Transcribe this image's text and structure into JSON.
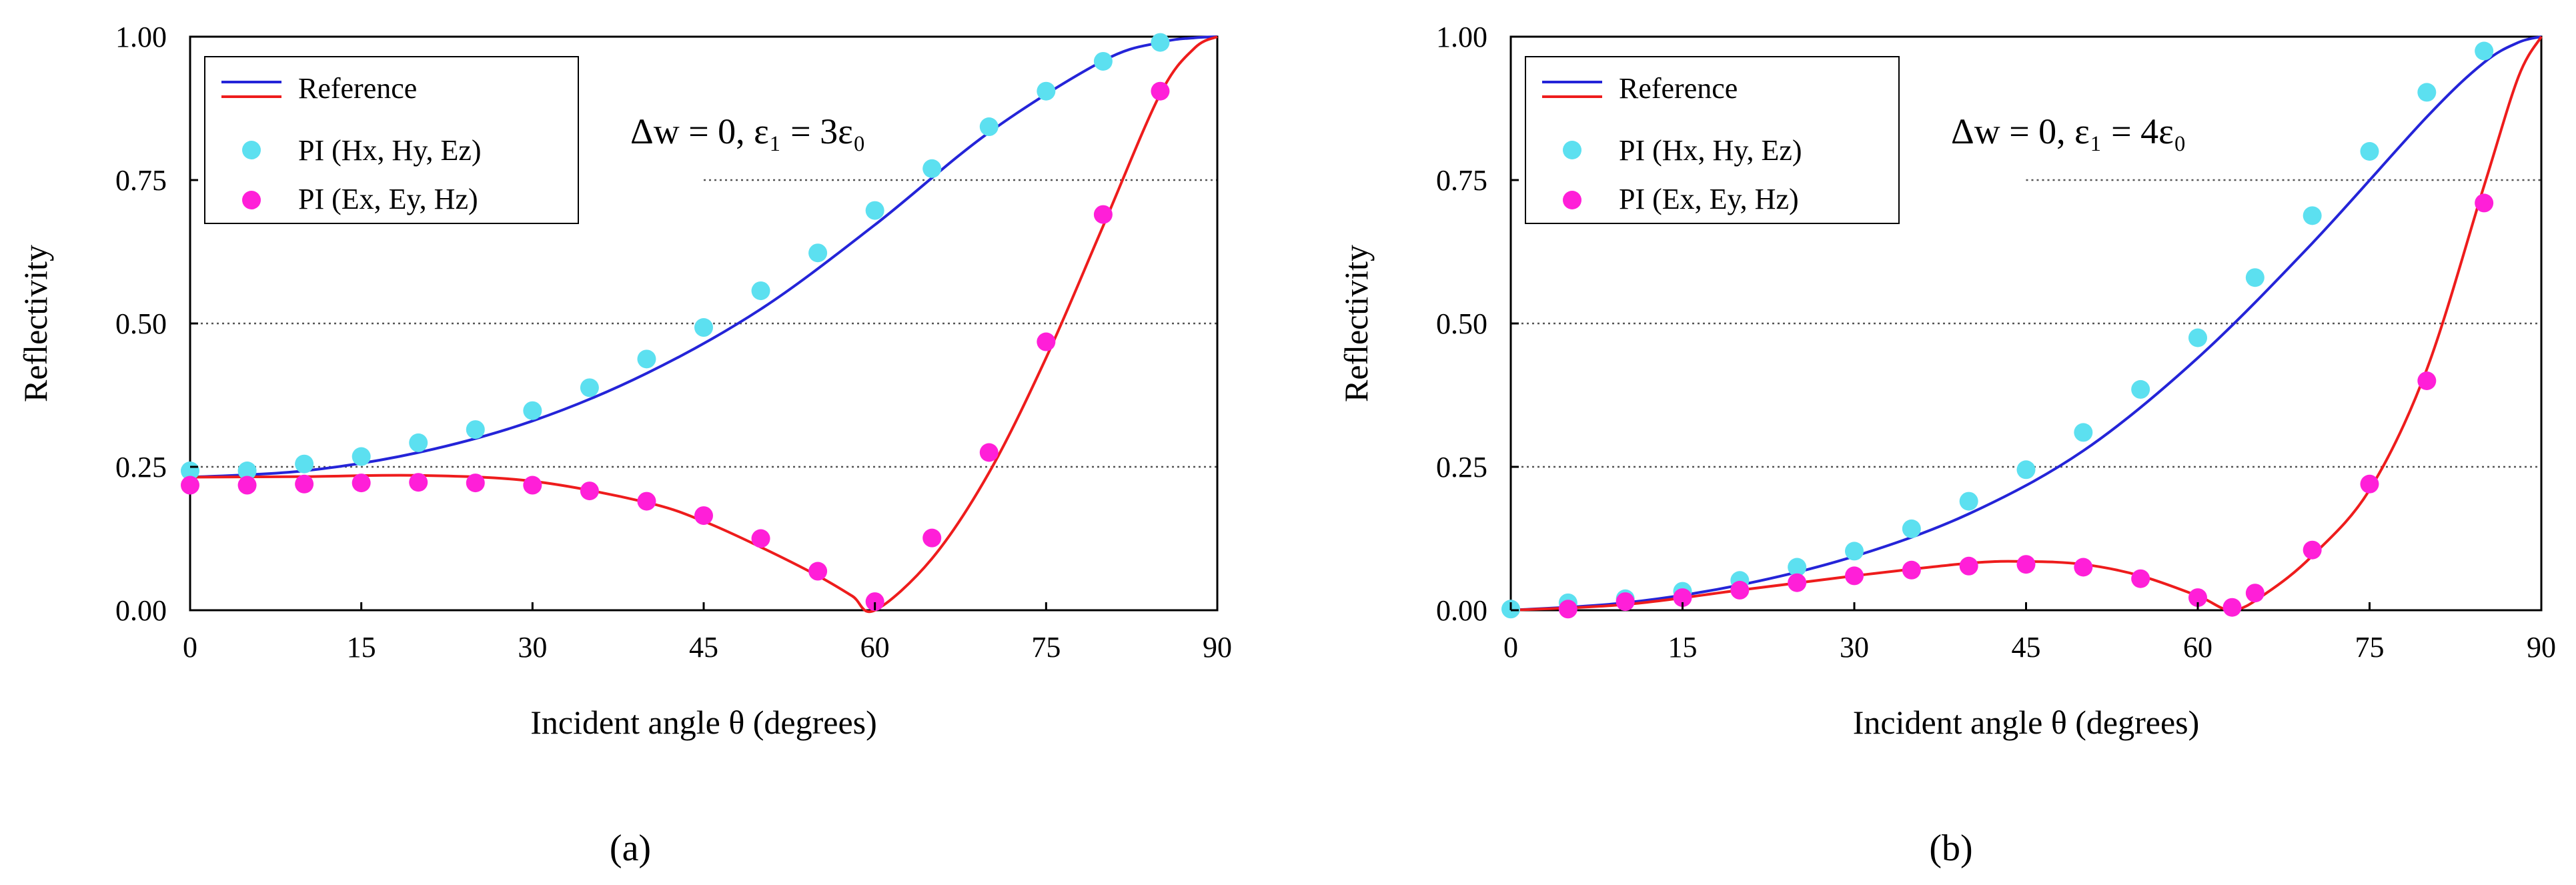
{
  "chart_data": [
    {
      "type": "line",
      "panel_label": "(a)",
      "xlabel": "Incident angle θ (degrees)",
      "ylabel": "Reflectivity",
      "xlim": [
        0,
        90
      ],
      "ylim": [
        0,
        1
      ],
      "xticks": [
        "0",
        "15",
        "30",
        "45",
        "60",
        "75",
        "90"
      ],
      "yticks": [
        "0.00",
        "0.25",
        "0.50",
        "0.75",
        "1.00"
      ],
      "gridlines_y": [
        0.25,
        0.5,
        0.75
      ],
      "annotation": "Δw = 0, ε₁ = 3ε₀",
      "legend": {
        "position": "top-left",
        "reference": "Reference",
        "pi_te": "PI (Hx, Hy, Ez)",
        "pi_tm": "PI (Ex, Ey, Hz)"
      },
      "colors": {
        "ref_te": "#2424d8",
        "ref_tm": "#ee1c1c",
        "pts_te": "#5ce0f0",
        "pts_tm": "#ff1fd8"
      },
      "reference_te": {
        "x": [
          0,
          10,
          20,
          30,
          40,
          50,
          60,
          70,
          80,
          85,
          88,
          90
        ],
        "y": [
          0.232,
          0.243,
          0.275,
          0.33,
          0.413,
          0.525,
          0.672,
          0.833,
          0.958,
          0.99,
          0.998,
          1.0
        ]
      },
      "reference_tm": {
        "x": [
          0,
          10,
          20,
          30,
          40,
          45,
          50,
          55,
          58,
          60,
          65,
          70,
          75,
          80,
          85,
          88,
          90
        ],
        "y": [
          0.232,
          0.233,
          0.235,
          0.225,
          0.188,
          0.155,
          0.11,
          0.06,
          0.025,
          0.0,
          0.09,
          0.24,
          0.44,
          0.67,
          0.9,
          0.98,
          1.0
        ]
      },
      "points_te": {
        "x": [
          0,
          5,
          10,
          15,
          20,
          25,
          30,
          35,
          40,
          45,
          50,
          55,
          60,
          65,
          70,
          75,
          80,
          85
        ],
        "y": [
          0.243,
          0.243,
          0.255,
          0.268,
          0.292,
          0.315,
          0.348,
          0.388,
          0.438,
          0.493,
          0.557,
          0.623,
          0.697,
          0.77,
          0.843,
          0.905,
          0.957,
          0.99
        ]
      },
      "points_tm": {
        "x": [
          0,
          5,
          10,
          15,
          20,
          25,
          30,
          35,
          40,
          45,
          50,
          55,
          60,
          65,
          70,
          75,
          80,
          85
        ],
        "y": [
          0.218,
          0.218,
          0.22,
          0.222,
          0.223,
          0.222,
          0.218,
          0.208,
          0.19,
          0.165,
          0.125,
          0.068,
          0.015,
          0.126,
          0.275,
          0.468,
          0.69,
          0.905
        ]
      }
    },
    {
      "type": "line",
      "panel_label": "(b)",
      "xlabel": "Incident angle θ (degrees)",
      "ylabel": "Reflectivity",
      "xlim": [
        0,
        90
      ],
      "ylim": [
        0,
        1
      ],
      "xticks": [
        "0",
        "15",
        "30",
        "45",
        "60",
        "75",
        "90"
      ],
      "yticks": [
        "0.00",
        "0.25",
        "0.50",
        "0.75",
        "1.00"
      ],
      "gridlines_y": [
        0.25,
        0.5,
        0.75
      ],
      "annotation": "Δw = 0, ε₁ = 4ε₀",
      "legend": {
        "position": "top-left",
        "reference": "Reference",
        "pi_te": "PI (Hx, Hy, Ez)",
        "pi_tm": "PI (Ex, Ey, Hz)"
      },
      "colors": {
        "ref_te": "#2424d8",
        "ref_tm": "#ee1c1c",
        "pts_te": "#5ce0f0",
        "pts_tm": "#ff1fd8"
      },
      "reference_te": {
        "x": [
          0,
          10,
          20,
          30,
          40,
          50,
          60,
          70,
          80,
          85,
          88,
          90
        ],
        "y": [
          0.0,
          0.013,
          0.044,
          0.094,
          0.168,
          0.278,
          0.44,
          0.64,
          0.86,
          0.955,
          0.99,
          1.0
        ]
      },
      "reference_tm": {
        "x": [
          0,
          10,
          20,
          30,
          40,
          45,
          50,
          55,
          60,
          63,
          66,
          70,
          75,
          80,
          85,
          88,
          90
        ],
        "y": [
          0.0,
          0.01,
          0.035,
          0.06,
          0.082,
          0.085,
          0.08,
          0.06,
          0.025,
          0.0,
          0.03,
          0.095,
          0.21,
          0.42,
          0.74,
          0.93,
          1.0
        ]
      },
      "points_te": {
        "x": [
          0,
          5,
          10,
          15,
          20,
          25,
          30,
          35,
          40,
          45,
          50,
          55,
          60,
          65,
          70,
          75,
          80,
          85
        ],
        "y": [
          0.002,
          0.013,
          0.02,
          0.033,
          0.052,
          0.075,
          0.103,
          0.142,
          0.19,
          0.245,
          0.31,
          0.385,
          0.475,
          0.58,
          0.688,
          0.8,
          0.903,
          0.975
        ]
      },
      "points_tm": {
        "x": [
          5,
          10,
          15,
          20,
          25,
          30,
          35,
          40,
          45,
          50,
          55,
          60,
          63,
          65,
          70,
          75,
          80,
          85
        ],
        "y": [
          0.002,
          0.015,
          0.022,
          0.035,
          0.048,
          0.06,
          0.07,
          0.077,
          0.08,
          0.075,
          0.055,
          0.022,
          0.005,
          0.03,
          0.105,
          0.22,
          0.4,
          0.71
        ]
      }
    }
  ]
}
